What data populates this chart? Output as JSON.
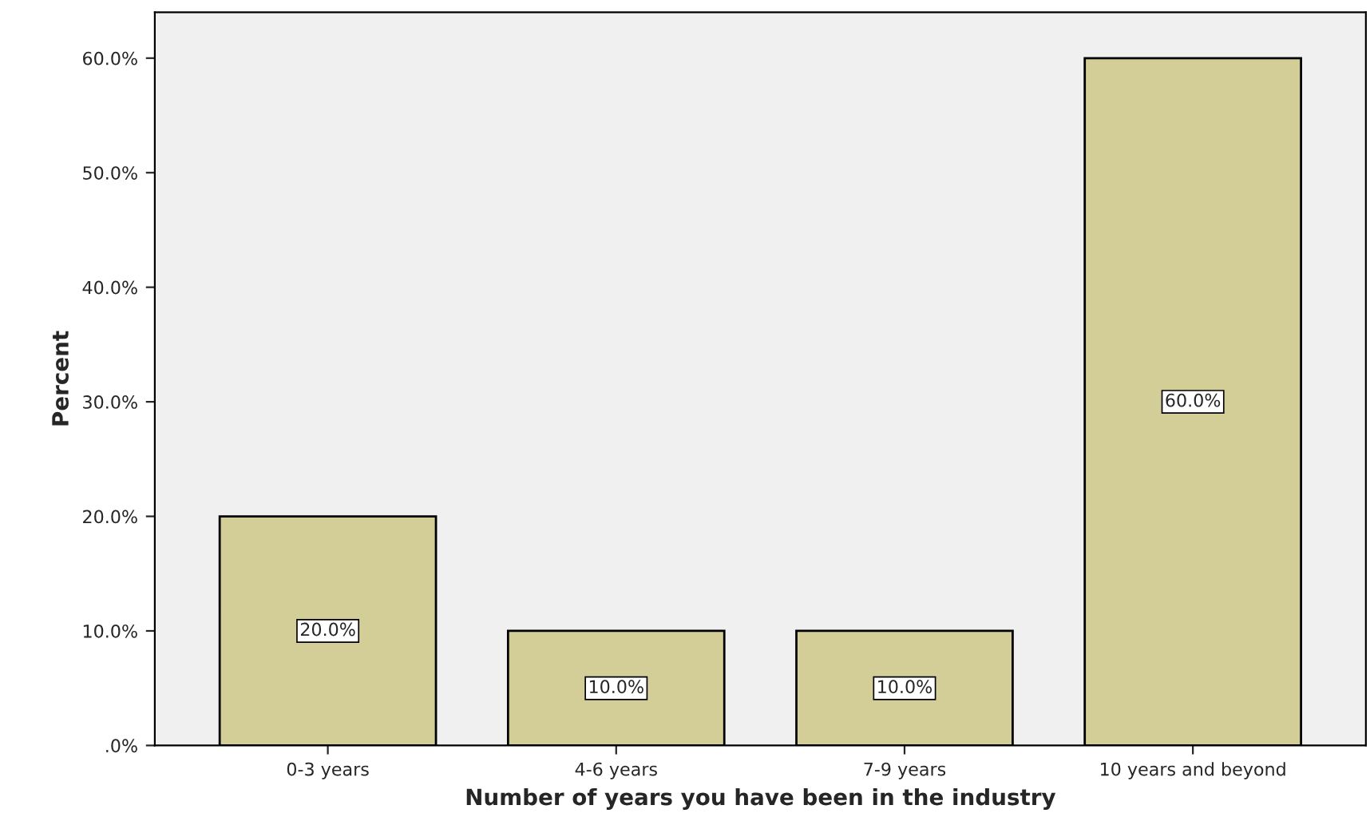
{
  "chart_data": {
    "type": "bar",
    "xlabel": "Number of years you have been in the industry",
    "ylabel": "Percent",
    "categories": [
      "0-3 years",
      "4-6 years",
      "7-9 years",
      "10 years and beyond"
    ],
    "values": [
      20,
      10,
      10,
      60
    ],
    "color": "#d3ce97",
    "value_labels": [
      "20.0%",
      "10.0%",
      "10.0%",
      "60.0%"
    ],
    "ylim": [
      0,
      64
    ],
    "yticks": [
      {
        "value": 0,
        "label": ".0%"
      },
      {
        "value": 10,
        "label": "10.0%"
      },
      {
        "value": 20,
        "label": "20.0%"
      },
      {
        "value": 30,
        "label": "30.0%"
      },
      {
        "value": 40,
        "label": "40.0%"
      },
      {
        "value": 50,
        "label": "50.0%"
      },
      {
        "value": 60,
        "label": "60.0%"
      }
    ],
    "grid": false,
    "legend": false
  }
}
